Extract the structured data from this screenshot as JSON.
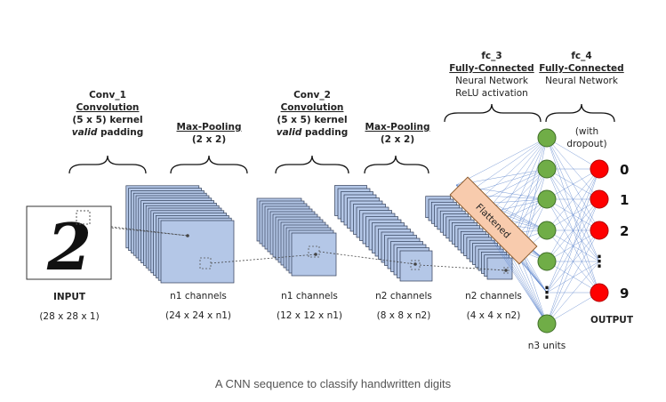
{
  "stages": {
    "conv1": {
      "name": "Conv_1",
      "type": "Convolution",
      "kernel": "(5 x 5) kernel",
      "padding_em": "valid",
      "padding_rest": " padding"
    },
    "pool1": {
      "type": "Max-Pooling",
      "size": "(2 x 2)"
    },
    "conv2": {
      "name": "Conv_2",
      "type": "Convolution",
      "kernel": "(5 x 5) kernel",
      "padding_em": "valid",
      "padding_rest": " padding"
    },
    "pool2": {
      "type": "Max-Pooling",
      "size": "(2 x 2)"
    },
    "fc3": {
      "name": "fc_3",
      "type": "Fully-Connected",
      "line1": "Neural Network",
      "line2": "ReLU activation"
    },
    "fc4": {
      "name": "fc_4",
      "type": "Fully-Connected",
      "line1": "Neural Network",
      "dropout1": "(with",
      "dropout2": "dropout)"
    }
  },
  "blocks": {
    "input": {
      "label": "INPUT",
      "dims": "(28 x 28 x 1)",
      "digit": "2"
    },
    "conv1_out": {
      "channels": "n1 channels",
      "dims": "(24 x 24 x n1)"
    },
    "pool1_out": {
      "channels": "n1 channels",
      "dims": "(12 x 12 x n1)"
    },
    "conv2_out": {
      "channels": "n2 channels",
      "dims": "(8 x 8 x n2)"
    },
    "pool2_out": {
      "channels": "n2 channels",
      "dims": "(4 x 4 x n2)"
    },
    "flattened": "Flattened",
    "hidden": {
      "units": "n3 units",
      "ellipsis": "⋮"
    },
    "output": {
      "label": "OUTPUT",
      "classes": [
        "0",
        "1",
        "2",
        "⋮",
        "9"
      ]
    }
  },
  "colors": {
    "feature_map": "#b4c7e7",
    "flattened": "#f8cbad",
    "hidden_node": "#70ad47",
    "output_node": "#ff0000",
    "connection": "#4472c4"
  },
  "caption": "A CNN sequence to classify handwritten digits"
}
